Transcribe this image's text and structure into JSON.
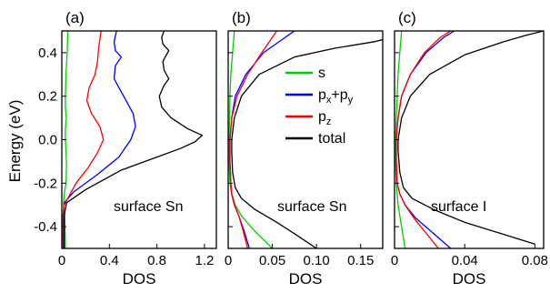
{
  "figure": {
    "ylabel": "Energy (eV)",
    "legend": {
      "placement": "inside panel (b), upper-middle",
      "entries": [
        {
          "label": "s",
          "color": "#00d000"
        },
        {
          "label": "p_x+p_y",
          "color": "#0000ff"
        },
        {
          "label": "p_z",
          "color": "#ff0000"
        },
        {
          "label": "total",
          "color": "#000000"
        }
      ]
    }
  },
  "chart_data": [
    {
      "type": "line",
      "panel_label": "(a)",
      "annotation": "surface Sn",
      "xlabel": "DOS",
      "ylabel": "Energy (eV)",
      "xlim": [
        0,
        1.3
      ],
      "ylim": [
        -0.5,
        0.5
      ],
      "xticks": [
        0,
        0.4,
        0.8,
        1.2
      ],
      "xtick_labels": [
        "0",
        "0.4",
        "0.8",
        "1.2"
      ],
      "yticks": [
        -0.4,
        -0.2,
        0.0,
        0.2,
        0.4
      ],
      "ytick_labels": [
        "-0.4",
        "-0.2",
        "0.0",
        "0.2",
        "0.4"
      ],
      "grid": false,
      "series": [
        {
          "name": "s",
          "color": "#00d000",
          "points": [
            [
              0.03,
              -0.5
            ],
            [
              0.025,
              -0.35
            ],
            [
              0.015,
              -0.29
            ],
            [
              0.02,
              -0.25
            ],
            [
              0.035,
              -0.2
            ],
            [
              0.04,
              -0.12
            ],
            [
              0.035,
              -0.05
            ],
            [
              0.03,
              0.0
            ],
            [
              0.03,
              0.05
            ],
            [
              0.038,
              0.1
            ],
            [
              0.03,
              0.15
            ],
            [
              0.03,
              0.2
            ],
            [
              0.035,
              0.3
            ],
            [
              0.045,
              0.4
            ],
            [
              0.05,
              0.5
            ]
          ]
        },
        {
          "name": "p_x+p_y",
          "color": "#0000ff",
          "points": [
            [
              0.01,
              -0.5
            ],
            [
              0.01,
              -0.35
            ],
            [
              0.02,
              -0.29
            ],
            [
              0.1,
              -0.24
            ],
            [
              0.3,
              -0.16
            ],
            [
              0.48,
              -0.08
            ],
            [
              0.58,
              0.0
            ],
            [
              0.62,
              0.06
            ],
            [
              0.6,
              0.12
            ],
            [
              0.54,
              0.18
            ],
            [
              0.48,
              0.24
            ],
            [
              0.44,
              0.28
            ],
            [
              0.45,
              0.34
            ],
            [
              0.5,
              0.38
            ],
            [
              0.45,
              0.41
            ],
            [
              0.44,
              0.45
            ],
            [
              0.46,
              0.5
            ]
          ]
        },
        {
          "name": "p_z",
          "color": "#ff0000",
          "points": [
            [
              0.01,
              -0.5
            ],
            [
              0.01,
              -0.35
            ],
            [
              0.02,
              -0.3
            ],
            [
              0.06,
              -0.26
            ],
            [
              0.12,
              -0.2
            ],
            [
              0.22,
              -0.13
            ],
            [
              0.3,
              -0.06
            ],
            [
              0.35,
              0.0
            ],
            [
              0.32,
              0.06
            ],
            [
              0.25,
              0.12
            ],
            [
              0.21,
              0.18
            ],
            [
              0.23,
              0.24
            ],
            [
              0.28,
              0.3
            ],
            [
              0.3,
              0.36
            ],
            [
              0.31,
              0.42
            ],
            [
              0.33,
              0.5
            ]
          ]
        },
        {
          "name": "total",
          "color": "#000000",
          "points": [
            [
              0.02,
              -0.5
            ],
            [
              0.02,
              -0.35
            ],
            [
              0.04,
              -0.29
            ],
            [
              0.2,
              -0.23
            ],
            [
              0.5,
              -0.14
            ],
            [
              0.8,
              -0.08
            ],
            [
              1.0,
              -0.04
            ],
            [
              1.12,
              -0.01
            ],
            [
              1.18,
              0.02
            ],
            [
              1.06,
              0.05
            ],
            [
              0.92,
              0.1
            ],
            [
              0.84,
              0.15
            ],
            [
              0.82,
              0.2
            ],
            [
              0.86,
              0.25
            ],
            [
              0.9,
              0.28
            ],
            [
              0.86,
              0.32
            ],
            [
              0.85,
              0.36
            ],
            [
              0.9,
              0.41
            ],
            [
              0.85,
              0.44
            ],
            [
              0.84,
              0.47
            ],
            [
              0.86,
              0.5
            ]
          ]
        }
      ]
    },
    {
      "type": "line",
      "panel_label": "(b)",
      "annotation": "surface Sn",
      "xlabel": "DOS",
      "xlim": [
        0,
        0.175
      ],
      "ylim": [
        -0.5,
        0.5
      ],
      "xticks": [
        0,
        0.05,
        0.1,
        0.15
      ],
      "xtick_labels": [
        "0",
        "0.05",
        "0.10",
        "0.15"
      ],
      "grid": false,
      "series": [
        {
          "name": "s",
          "color": "#00d000",
          "points": [
            [
              0.05,
              -0.5
            ],
            [
              0.03,
              -0.42
            ],
            [
              0.015,
              -0.35
            ],
            [
              0.008,
              -0.3
            ],
            [
              0.004,
              -0.25
            ],
            [
              0.002,
              -0.2
            ],
            [
              0.001,
              -0.1
            ],
            [
              0.001,
              0.0
            ],
            [
              0.0015,
              0.1
            ],
            [
              0.002,
              0.2
            ],
            [
              0.003,
              0.3
            ],
            [
              0.005,
              0.4
            ],
            [
              0.007,
              0.5
            ]
          ]
        },
        {
          "name": "p_x+p_y",
          "color": "#0000ff",
          "points": [
            [
              0.024,
              -0.5
            ],
            [
              0.018,
              -0.42
            ],
            [
              0.012,
              -0.35
            ],
            [
              0.007,
              -0.3
            ],
            [
              0.004,
              -0.25
            ],
            [
              0.003,
              -0.2
            ],
            [
              0.002,
              -0.1
            ],
            [
              0.002,
              0.0
            ],
            [
              0.004,
              0.1
            ],
            [
              0.008,
              0.2
            ],
            [
              0.02,
              0.3
            ],
            [
              0.04,
              0.4
            ],
            [
              0.075,
              0.5
            ]
          ]
        },
        {
          "name": "p_z",
          "color": "#ff0000",
          "points": [
            [
              0.022,
              -0.5
            ],
            [
              0.017,
              -0.42
            ],
            [
              0.012,
              -0.35
            ],
            [
              0.007,
              -0.3
            ],
            [
              0.004,
              -0.25
            ],
            [
              0.003,
              -0.2
            ],
            [
              0.002,
              -0.1
            ],
            [
              0.002,
              0.0
            ],
            [
              0.004,
              0.1
            ],
            [
              0.01,
              0.2
            ],
            [
              0.022,
              0.3
            ],
            [
              0.038,
              0.4
            ],
            [
              0.055,
              0.5
            ]
          ]
        },
        {
          "name": "total",
          "color": "#000000",
          "points": [
            [
              0.1,
              -0.5
            ],
            [
              0.078,
              -0.44
            ],
            [
              0.055,
              -0.38
            ],
            [
              0.03,
              -0.32
            ],
            [
              0.015,
              -0.27
            ],
            [
              0.008,
              -0.22
            ],
            [
              0.005,
              -0.15
            ],
            [
              0.004,
              -0.05
            ],
            [
              0.004,
              0.0
            ],
            [
              0.007,
              0.1
            ],
            [
              0.015,
              0.2
            ],
            [
              0.035,
              0.3
            ],
            [
              0.075,
              0.38
            ],
            [
              0.12,
              0.42
            ],
            [
              0.165,
              0.45
            ],
            [
              0.175,
              0.46
            ]
          ]
        }
      ]
    },
    {
      "type": "line",
      "panel_label": "(c)",
      "annotation": "surface I",
      "xlabel": "DOS",
      "xlim": [
        0,
        0.085
      ],
      "ylim": [
        -0.5,
        0.5
      ],
      "xticks": [
        0,
        0.04,
        0.08
      ],
      "xtick_labels": [
        "0",
        "0.04",
        "0.08"
      ],
      "grid": false,
      "series": [
        {
          "name": "s",
          "color": "#00d000",
          "points": [
            [
              0.006,
              -0.5
            ],
            [
              0.004,
              -0.4
            ],
            [
              0.002,
              -0.3
            ],
            [
              0.001,
              -0.2
            ],
            [
              0.0005,
              -0.1
            ],
            [
              0.0005,
              0.0
            ],
            [
              0.001,
              0.1
            ],
            [
              0.0015,
              0.2
            ],
            [
              0.002,
              0.3
            ],
            [
              0.003,
              0.4
            ],
            [
              0.004,
              0.5
            ]
          ]
        },
        {
          "name": "p_x+p_y",
          "color": "#0000ff",
          "points": [
            [
              0.032,
              -0.5
            ],
            [
              0.022,
              -0.43
            ],
            [
              0.012,
              -0.36
            ],
            [
              0.006,
              -0.3
            ],
            [
              0.003,
              -0.25
            ],
            [
              0.0015,
              -0.2
            ],
            [
              0.001,
              -0.1
            ],
            [
              0.001,
              0.0
            ],
            [
              0.002,
              0.1
            ],
            [
              0.004,
              0.2
            ],
            [
              0.009,
              0.3
            ],
            [
              0.018,
              0.4
            ],
            [
              0.028,
              0.47
            ],
            [
              0.034,
              0.5
            ]
          ]
        },
        {
          "name": "p_z",
          "color": "#ff0000",
          "points": [
            [
              0.025,
              -0.5
            ],
            [
              0.018,
              -0.43
            ],
            [
              0.011,
              -0.36
            ],
            [
              0.006,
              -0.3
            ],
            [
              0.003,
              -0.25
            ],
            [
              0.0015,
              -0.2
            ],
            [
              0.001,
              -0.1
            ],
            [
              0.001,
              0.0
            ],
            [
              0.002,
              0.1
            ],
            [
              0.004,
              0.2
            ],
            [
              0.009,
              0.3
            ],
            [
              0.017,
              0.4
            ],
            [
              0.026,
              0.47
            ],
            [
              0.032,
              0.5
            ]
          ]
        },
        {
          "name": "total",
          "color": "#000000",
          "points": [
            [
              0.08,
              -0.48
            ],
            [
              0.06,
              -0.43
            ],
            [
              0.04,
              -0.38
            ],
            [
              0.022,
              -0.32
            ],
            [
              0.01,
              -0.27
            ],
            [
              0.005,
              -0.22
            ],
            [
              0.003,
              -0.15
            ],
            [
              0.002,
              -0.05
            ],
            [
              0.002,
              0.0
            ],
            [
              0.004,
              0.1
            ],
            [
              0.009,
              0.2
            ],
            [
              0.02,
              0.3
            ],
            [
              0.04,
              0.39
            ],
            [
              0.062,
              0.45
            ],
            [
              0.075,
              0.48
            ],
            [
              0.085,
              0.5
            ]
          ]
        }
      ]
    }
  ]
}
